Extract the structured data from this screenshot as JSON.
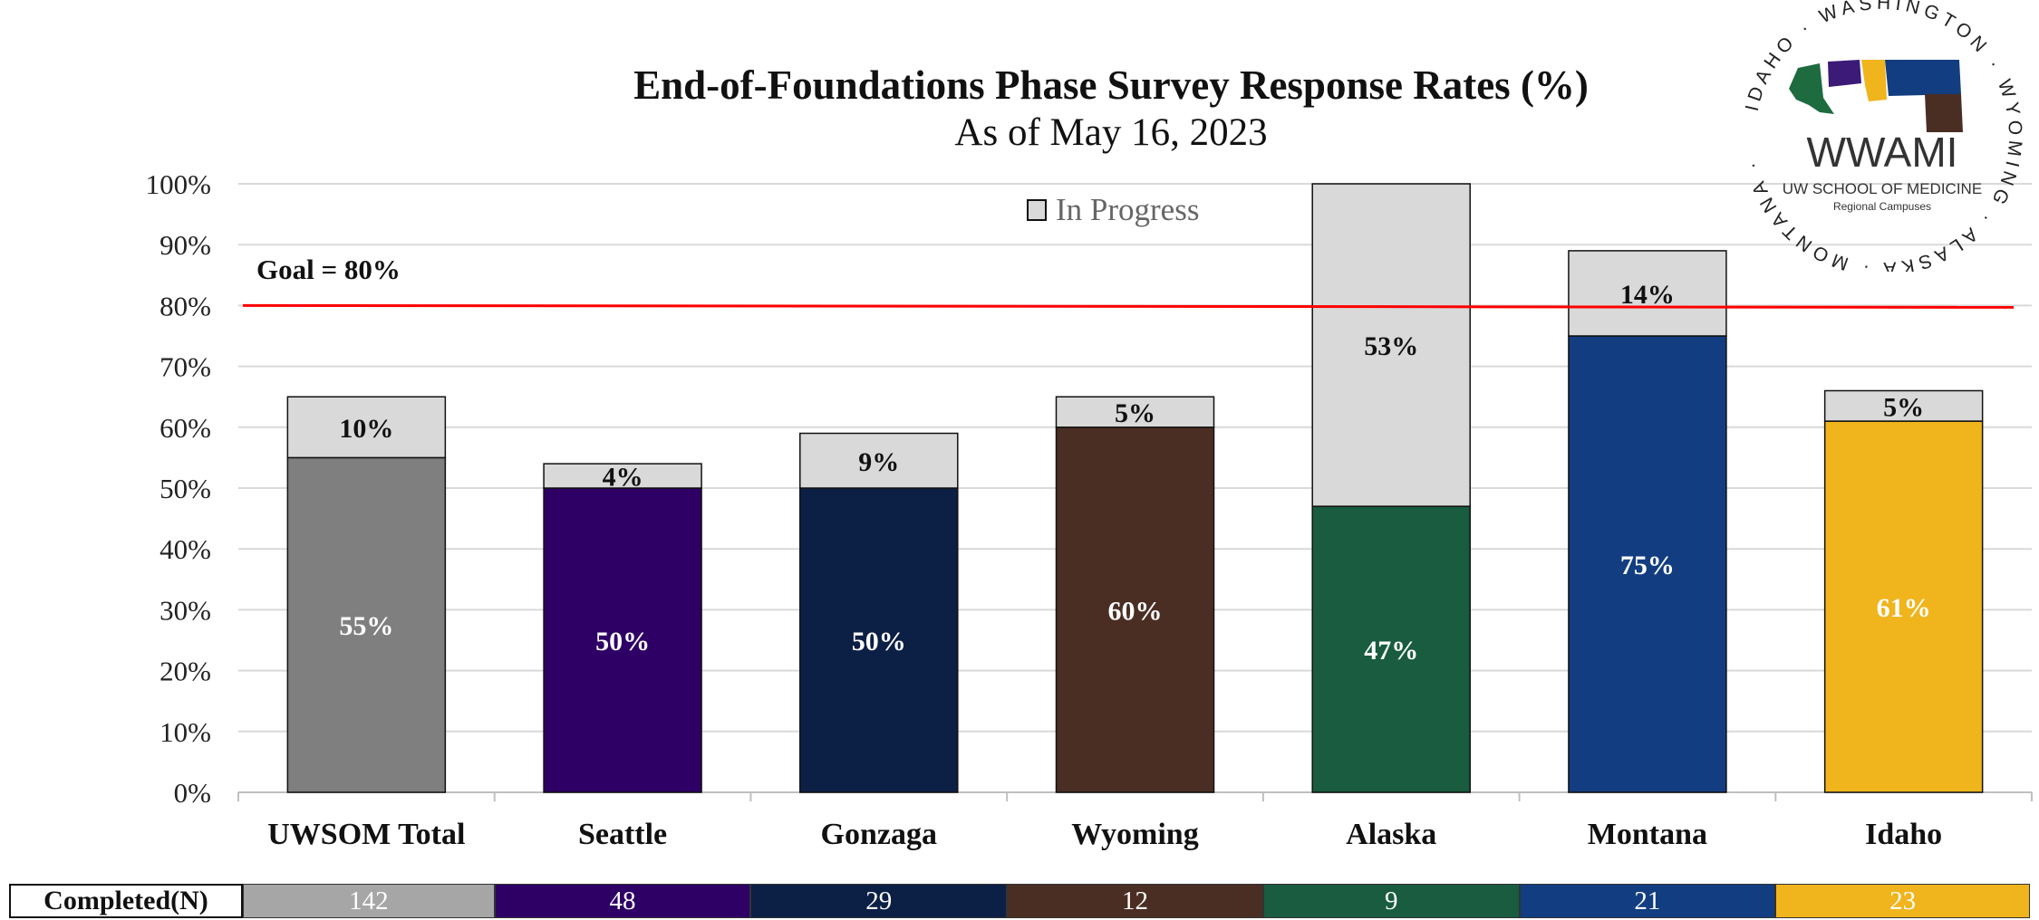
{
  "header": {
    "title": "End-of-Foundations Phase Survey Response Rates (%)",
    "subtitle": "As of May 16, 2023"
  },
  "logo": {
    "arc_text": "IDAHO · WASHINGTON · WYOMING · ALASKA · MONTANA ·",
    "name": "WWAMI",
    "line1": "UW SCHOOL OF MEDICINE",
    "line2": "Regional Campuses"
  },
  "legend": {
    "label": "In Progress"
  },
  "goal": {
    "label": "Goal = 80%",
    "value": 80,
    "color": "#ff0000"
  },
  "completed": {
    "header": "Completed(N)",
    "values": [
      "142",
      "48",
      "29",
      "12",
      "9",
      "21",
      "23"
    ]
  },
  "chart_data": {
    "type": "bar",
    "stacked": true,
    "categories": [
      "UWSOM Total",
      "Seattle",
      "Gonzaga",
      "Wyoming",
      "Alaska",
      "Montana",
      "Idaho"
    ],
    "series": [
      {
        "values": [
          55,
          50,
          50,
          60,
          47,
          75,
          61
        ],
        "labels": [
          "55%",
          "50%",
          "50%",
          "60%",
          "47%",
          "75%",
          "61%"
        ],
        "colors": [
          "#7f7f7f",
          "#2e0066",
          "#0c1f45",
          "#4a2e23",
          "#195c3f",
          "#123d80",
          "#f0b41c"
        ]
      },
      {
        "name": "In Progress",
        "values": [
          10,
          4,
          9,
          5,
          53,
          14,
          5
        ],
        "labels": [
          "10%",
          "4%",
          "9%",
          "5%",
          "53%",
          "14%",
          "5%"
        ],
        "color": "#d9d9d9"
      }
    ],
    "ylim": [
      0,
      100
    ],
    "yticks": [
      "0%",
      "10%",
      "20%",
      "30%",
      "40%",
      "50%",
      "60%",
      "70%",
      "80%",
      "90%",
      "100%"
    ],
    "grid": true,
    "legend_position": "top-center"
  }
}
